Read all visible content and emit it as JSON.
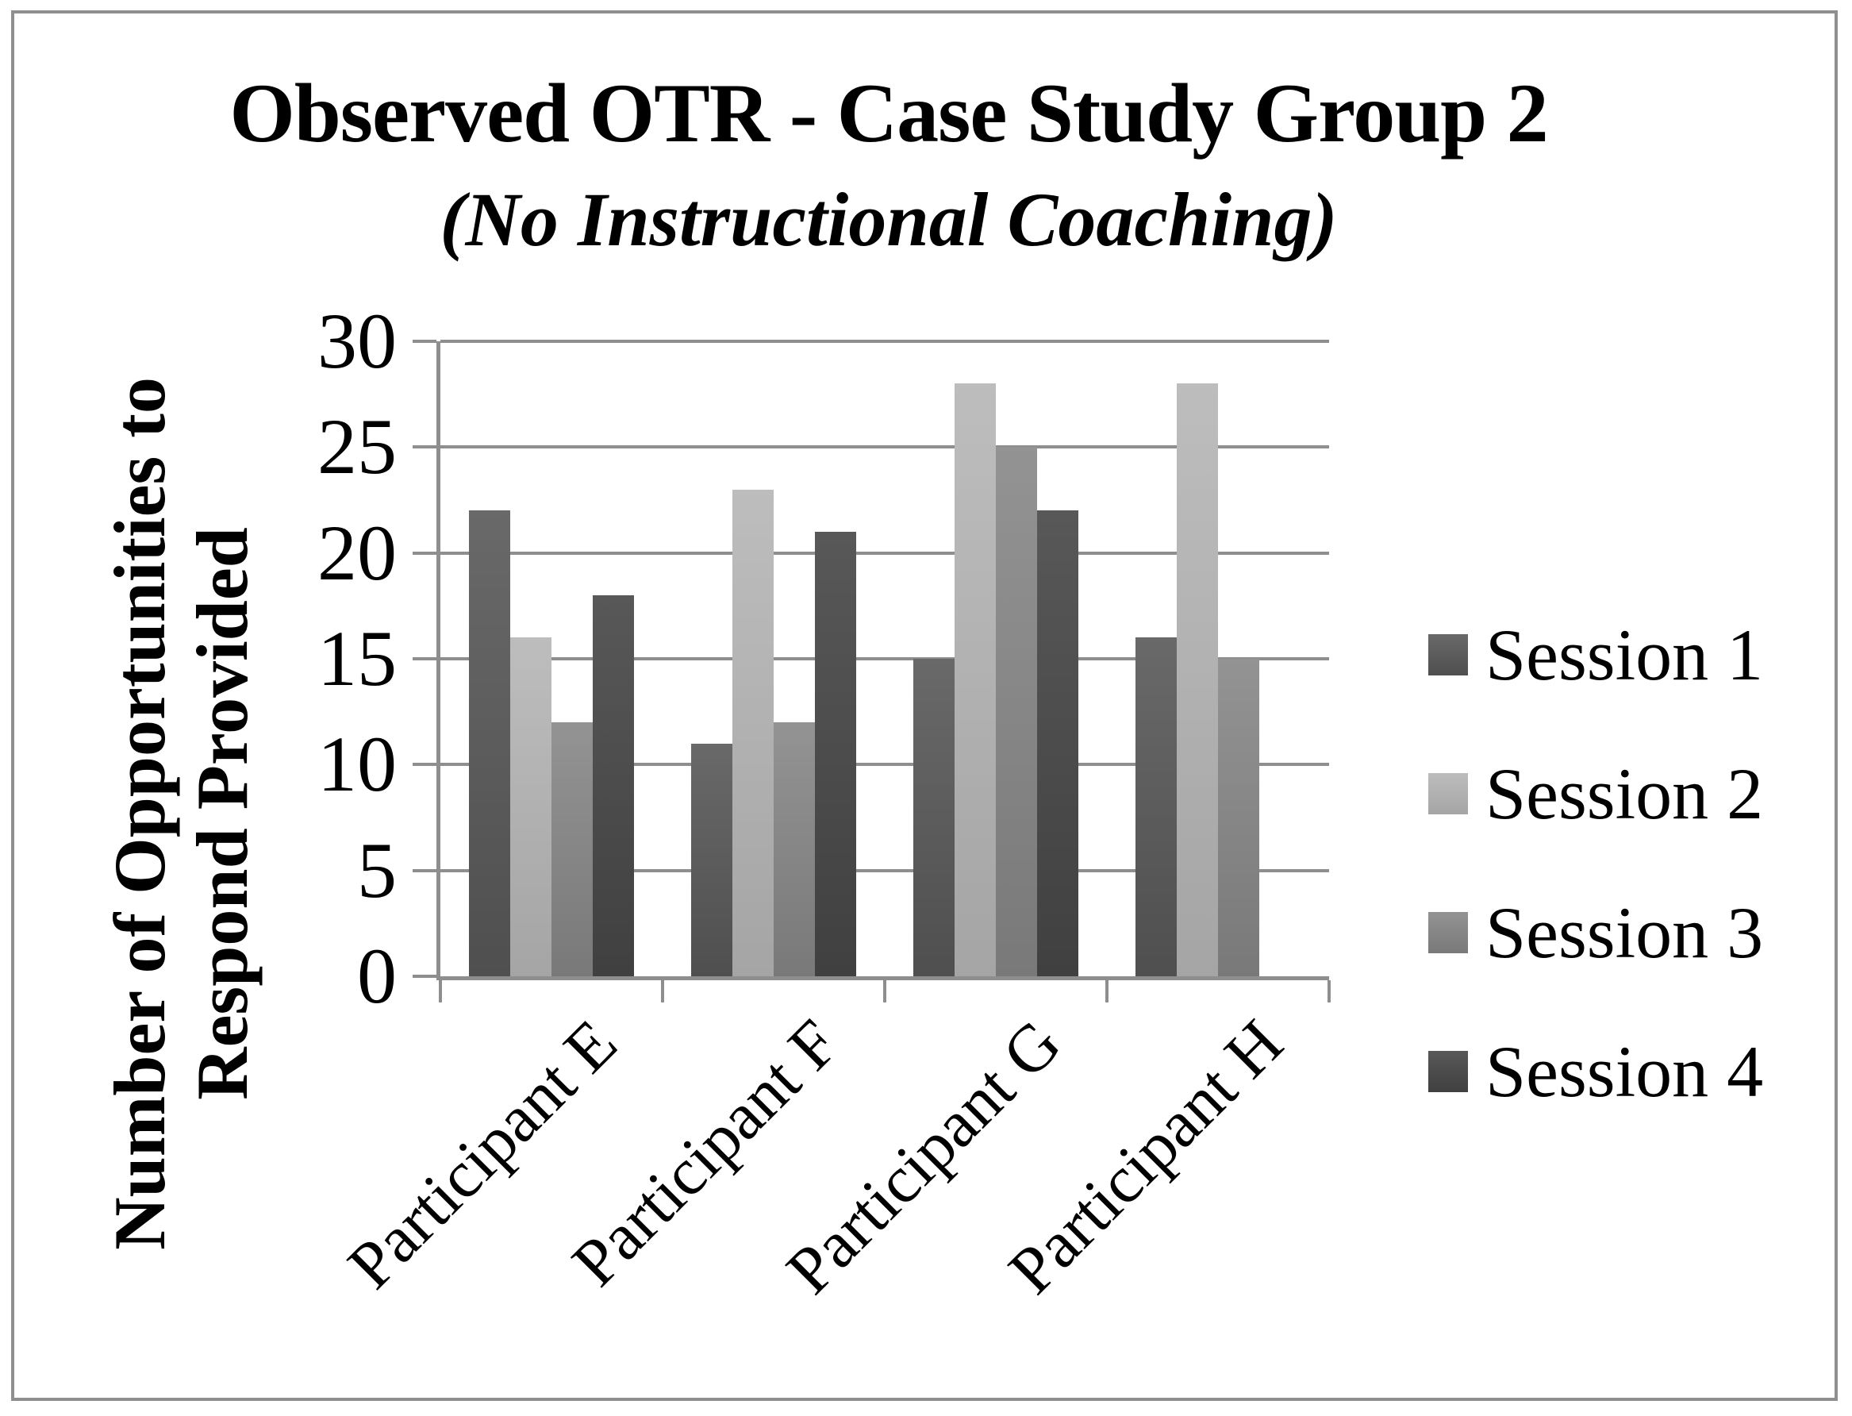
{
  "title": {
    "line1": "Observed OTR - Case Study Group 2",
    "line2": "(No Instructional Coaching)"
  },
  "y_axis": {
    "title_line1": "Number of Opportunities to",
    "title_line2": "Respond Provided"
  },
  "chart_data": {
    "type": "bar",
    "title": "Observed OTR - Case Study Group 2",
    "subtitle": "(No Instructional Coaching)",
    "categories": [
      "Participant E",
      "Participant F",
      "Participant G",
      "Participant H"
    ],
    "series": [
      {
        "name": "Session 1",
        "values": [
          22,
          11,
          15,
          16
        ],
        "color_top": "#696969",
        "color_bottom": "#4f4f4f"
      },
      {
        "name": "Session 2",
        "values": [
          16,
          23,
          28,
          28
        ],
        "color_top": "#bdbdbd",
        "color_bottom": "#a5a5a5"
      },
      {
        "name": "Session 3",
        "values": [
          12,
          12,
          25,
          15
        ],
        "color_top": "#939393",
        "color_bottom": "#797979"
      },
      {
        "name": "Session 4",
        "values": [
          18,
          21,
          22,
          0
        ],
        "color_top": "#585858",
        "color_bottom": "#404040"
      }
    ],
    "xlabel": "",
    "ylabel": "Number of Opportunities to Respond Provided",
    "ylim": [
      0,
      30
    ],
    "ytick_step": 5,
    "yticks": [
      30,
      25,
      20,
      15,
      10,
      5,
      0
    ],
    "grid": true,
    "legend_position": "right",
    "axis_color": "#8e8e8e",
    "border_color": "#8f8f8f",
    "background": "#ffffff"
  }
}
